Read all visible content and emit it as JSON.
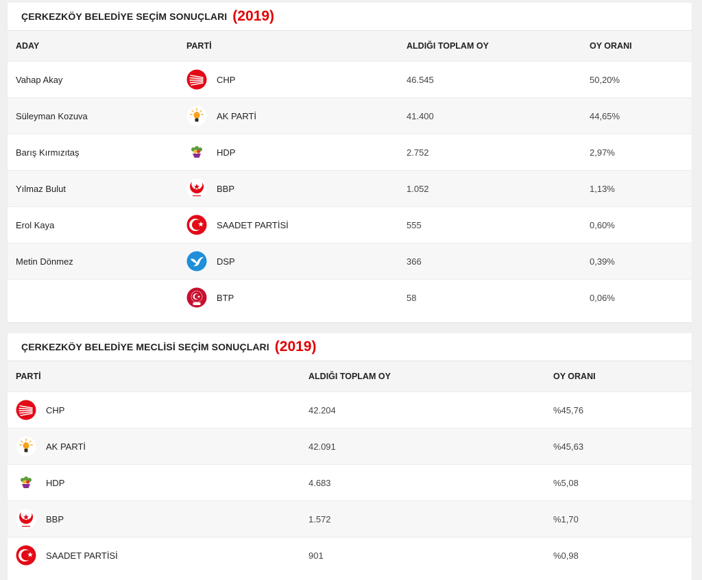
{
  "mayor": {
    "title": "ÇERKEZKÖY BELEDİYE SEÇİM SONUÇLARI",
    "year": "(2019)",
    "headers": {
      "candidate": "ADAY",
      "party": "PARTİ",
      "votes": "ALDIĞI TOPLAM OY",
      "ratio": "OY ORANI"
    },
    "rows": [
      {
        "candidate": "Vahap Akay",
        "party": "CHP",
        "logo": "chp-logo-icon",
        "votes": "46.545",
        "ratio": "50,20%"
      },
      {
        "candidate": "Süleyman Kozuva",
        "party": "AK PARTİ",
        "logo": "akparti-logo-icon",
        "votes": "41.400",
        "ratio": "44,65%"
      },
      {
        "candidate": "Barış Kırmızıtaş",
        "party": "HDP",
        "logo": "hdp-logo-icon",
        "votes": "2.752",
        "ratio": "2,97%"
      },
      {
        "candidate": "Yılmaz Bulut",
        "party": "BBP",
        "logo": "bbp-logo-icon",
        "votes": "1.052",
        "ratio": "1,13%"
      },
      {
        "candidate": "Erol Kaya",
        "party": "SAADET PARTİSİ",
        "logo": "saadet-logo-icon",
        "votes": "555",
        "ratio": "0,60%"
      },
      {
        "candidate": "Metin Dönmez",
        "party": "DSP",
        "logo": "dsp-logo-icon",
        "votes": "366",
        "ratio": "0,39%"
      },
      {
        "candidate": "",
        "party": "BTP",
        "logo": "btp-logo-icon",
        "votes": "58",
        "ratio": "0,06%"
      }
    ]
  },
  "council": {
    "title": "ÇERKEZKÖY BELEDİYE MECLİSİ SEÇİM SONUÇLARI",
    "year": "(2019)",
    "headers": {
      "party": "PARTİ",
      "votes": "ALDIĞI TOPLAM OY",
      "ratio": "OY ORANI"
    },
    "rows": [
      {
        "party": "CHP",
        "logo": "chp-logo-icon",
        "votes": "42.204",
        "ratio": "%45,76"
      },
      {
        "party": "AK PARTİ",
        "logo": "akparti-logo-icon",
        "votes": "42.091",
        "ratio": "%45,63"
      },
      {
        "party": "HDP",
        "logo": "hdp-logo-icon",
        "votes": "4.683",
        "ratio": "%5,08"
      },
      {
        "party": "BBP",
        "logo": "bbp-logo-icon",
        "votes": "1.572",
        "ratio": "%1,70"
      },
      {
        "party": "SAADET PARTİSİ",
        "logo": "saadet-logo-icon",
        "votes": "901",
        "ratio": "%0,98"
      }
    ]
  },
  "colors": {
    "year_red": "#e10000",
    "chp_red": "#e30a17",
    "akp_orange": "#f7a21b",
    "hdp_green": "#5a9c3a",
    "hdp_purple": "#8b2d8f",
    "dsp_blue": "#1e8fd8",
    "header_bg": "#f5f5f5",
    "alt_row_bg": "#f7f7f7"
  }
}
